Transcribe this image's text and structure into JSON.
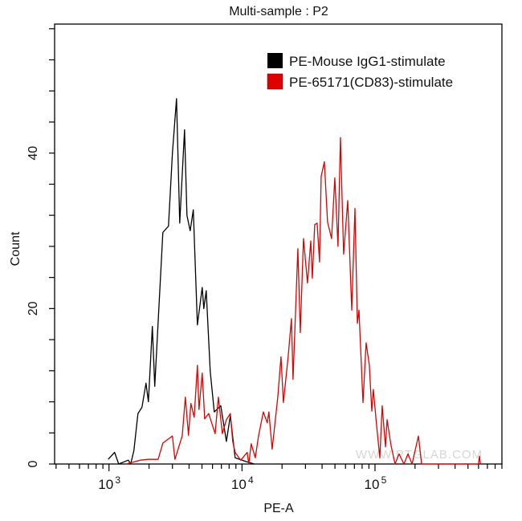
{
  "chart_data": {
    "type": "line",
    "title": "Multi-sample : P2",
    "xlabel": "PE-A",
    "ylabel": "Count",
    "x_scale": "log",
    "xlim": [
      390,
      900000
    ],
    "ylim": [
      0,
      56.6
    ],
    "x_major_ticks": [
      {
        "base": "10",
        "exp": "3",
        "value": 1000
      },
      {
        "base": "10",
        "exp": "4",
        "value": 10000
      },
      {
        "base": "10",
        "exp": "5",
        "value": 100000
      }
    ],
    "y_ticks": [
      0,
      20,
      40
    ],
    "y_minor_step": 4,
    "grid": false,
    "legend_position": "top-right",
    "watermark": "WWW.PTGLAB.COM",
    "series": [
      {
        "name": "PE-Mouse IgG1-stimulate",
        "color": "#000000",
        "x": [
          986,
          1102,
          1182,
          1397,
          1455,
          1538,
          1651,
          1771,
          1897,
          1978,
          2118,
          2208,
          2540,
          2800,
          3000,
          3220,
          3404,
          3700,
          3856,
          4077,
          4305,
          4620,
          5023,
          5163,
          5385,
          5770,
          6190,
          6920,
          7630,
          8170,
          8880,
          10790,
          12400
        ],
        "y": [
          0.6,
          1.5,
          0,
          0.5,
          0,
          1.7,
          6.5,
          7.3,
          10.4,
          8,
          17.7,
          10,
          29.8,
          30.6,
          40,
          47,
          31,
          43,
          32,
          30,
          32.7,
          17.9,
          22.7,
          20,
          22.3,
          11.9,
          6.7,
          7.5,
          2.9,
          6.2,
          0.8,
          0.3,
          0
        ]
      },
      {
        "name": "PE-65171(CD83)-stimulate",
        "color": "#e00000",
        "x": [
          1340,
          1720,
          1980,
          2340,
          2540,
          3000,
          3130,
          3550,
          3750,
          3960,
          4130,
          4370,
          4620,
          4750,
          5020,
          5240,
          5610,
          6280,
          6640,
          7120,
          7630,
          8170,
          8520,
          8880,
          9790,
          10940,
          11250,
          11730,
          12580,
          13300,
          14460,
          15490,
          15930,
          16850,
          18580,
          19640,
          20480,
          22240,
          23530,
          24190,
          26300,
          27420,
          28990,
          31060,
          32880,
          33800,
          35240,
          36740,
          38300,
          39370,
          41610,
          44010,
          47170,
          49860,
          52720,
          54960,
          58100,
          62340,
          66840,
          70670,
          73680,
          75740,
          81170,
          85800,
          90690,
          94600,
          97240,
          102800,
          108700,
          113300,
          119800,
          123200,
          132000,
          141500,
          151700,
          165100,
          177000,
          189800,
          212000,
          224100,
          600000,
          610000,
          620000
        ],
        "y": [
          0,
          0.5,
          0.6,
          0.6,
          2.7,
          3.6,
          0.6,
          3.6,
          8.6,
          3.7,
          7.8,
          6,
          12.7,
          7,
          11.7,
          5.8,
          6.5,
          3.9,
          8.6,
          3.9,
          5.7,
          6.5,
          2.9,
          1.5,
          0.5,
          1.5,
          0,
          2.6,
          0.8,
          3.6,
          6.7,
          5.3,
          6.7,
          1.9,
          8.6,
          13.8,
          7.9,
          13.8,
          18.7,
          10.9,
          27.7,
          16.9,
          29,
          23.3,
          28.7,
          23.9,
          30.8,
          31,
          26,
          37,
          38.9,
          31.1,
          29,
          36.8,
          28,
          42,
          27,
          33.9,
          19.8,
          32.9,
          18.1,
          19.8,
          7.9,
          15.6,
          12.7,
          6.8,
          9.6,
          5,
          0.8,
          7.5,
          2.2,
          5.7,
          2.4,
          0,
          1.3,
          0,
          1.3,
          0,
          3.6,
          0,
          0,
          1,
          0
        ]
      }
    ]
  }
}
